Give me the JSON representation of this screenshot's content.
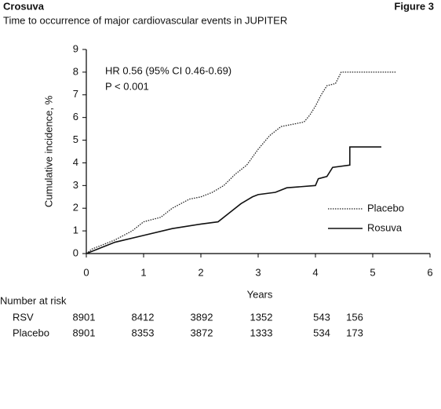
{
  "chart_data": {
    "type": "line",
    "brand": "Crosuva",
    "figure": "Figure 3",
    "title": "Time to occurrence of major cardiovascular events in JUPITER",
    "x_label": "Years",
    "y_label": "Cumulative incidence, %",
    "annotations": [
      "HR 0.56 (95% CI 0.46-0.69)",
      "P < 0.001"
    ],
    "xlim": [
      0,
      6
    ],
    "xticks": [
      0,
      1,
      2,
      3,
      4,
      5,
      6
    ],
    "ylim": [
      0,
      9
    ],
    "yticks": [
      0,
      1,
      2,
      3,
      4,
      5,
      6,
      7,
      8,
      9
    ],
    "series": [
      {
        "name": "Placebo",
        "color": "#222222",
        "dotted": true,
        "x": [
          0,
          0.1,
          0.5,
          0.8,
          1.0,
          1.3,
          1.5,
          1.8,
          2.0,
          2.2,
          2.4,
          2.6,
          2.8,
          3.0,
          3.2,
          3.4,
          3.6,
          3.8,
          3.9,
          4.0,
          4.1,
          4.2,
          4.35,
          4.45,
          5.4
        ],
        "values": [
          0,
          0.2,
          0.6,
          1.0,
          1.4,
          1.6,
          2.0,
          2.4,
          2.5,
          2.7,
          3.0,
          3.5,
          3.9,
          4.6,
          5.2,
          5.6,
          5.7,
          5.8,
          6.1,
          6.5,
          7.0,
          7.4,
          7.5,
          8.0,
          8.0
        ]
      },
      {
        "name": "Rosuva",
        "color": "#111111",
        "dotted": false,
        "x": [
          0,
          0.1,
          0.5,
          1.0,
          1.5,
          2.0,
          2.3,
          2.5,
          2.7,
          2.9,
          3.0,
          3.3,
          3.5,
          4.0,
          4.05,
          4.2,
          4.3,
          4.6,
          4.6,
          5.15
        ],
        "values": [
          0,
          0.1,
          0.5,
          0.8,
          1.1,
          1.3,
          1.4,
          1.8,
          2.2,
          2.5,
          2.6,
          2.7,
          2.9,
          3.0,
          3.3,
          3.4,
          3.8,
          3.9,
          4.7,
          4.7
        ]
      }
    ],
    "risk_table": {
      "title": "Number at risk",
      "rows": [
        {
          "label": "RSV",
          "values": [
            8901,
            8412,
            3892,
            1352,
            543,
            156
          ]
        },
        {
          "label": "Placebo",
          "values": [
            8901,
            8353,
            3872,
            1333,
            534,
            173
          ]
        }
      ]
    }
  }
}
